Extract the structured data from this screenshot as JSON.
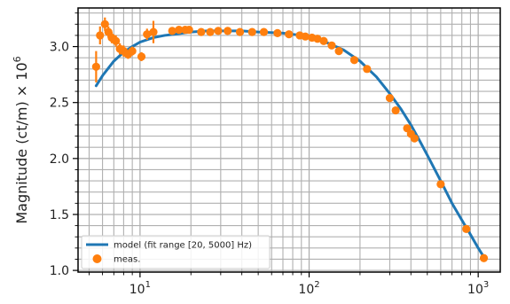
{
  "chart_data": {
    "type": "scatter",
    "x_scale": "log",
    "xlim": [
      4.3,
      1350
    ],
    "ylim": [
      0.985,
      3.345
    ],
    "y_ticks": [
      1.0,
      1.5,
      2.0,
      2.5,
      3.0
    ],
    "y_tick_labels": [
      "1.0",
      "1.5",
      "2.0",
      "2.5",
      "3.0"
    ],
    "x_ticks": [
      10,
      100,
      1000
    ],
    "x_tick_labels": [
      "10",
      "10",
      "10"
    ],
    "x_tick_exponents": [
      "1",
      "2",
      "3"
    ],
    "ylabel": "Magnitude (ct/m) × 10",
    "ylabel_exponent": "6",
    "xlabel": "",
    "grid": true,
    "legend_position": "lower-left",
    "colors": {
      "model": "#1f77b4",
      "meas": "#ff7f0e"
    },
    "series": [
      {
        "name": "model (fit range [20, 5000] Hz)",
        "kind": "line",
        "x": [
          5.5,
          6,
          7,
          8,
          9,
          10,
          12,
          14,
          16,
          20,
          25,
          30,
          40,
          50,
          70,
          90,
          110,
          130,
          160,
          200,
          250,
          300,
          350,
          400,
          450,
          500,
          600,
          700,
          800,
          900,
          1000,
          1100
        ],
        "y": [
          2.65,
          2.74,
          2.87,
          2.95,
          3.0,
          3.04,
          3.08,
          3.1,
          3.11,
          3.13,
          3.14,
          3.14,
          3.14,
          3.13,
          3.12,
          3.1,
          3.07,
          3.03,
          2.97,
          2.87,
          2.73,
          2.58,
          2.44,
          2.3,
          2.16,
          2.03,
          1.8,
          1.6,
          1.45,
          1.32,
          1.2,
          1.1
        ]
      },
      {
        "name": "meas.",
        "kind": "scatter",
        "x": [
          5.5,
          5.8,
          6.2,
          6.5,
          6.8,
          7.2,
          7.6,
          8.0,
          8.5,
          9.0,
          10.2,
          11.0,
          12.0,
          15.5,
          17.0,
          18.5,
          19.5,
          23,
          26,
          29,
          33,
          39,
          46,
          54,
          65,
          76,
          88,
          95,
          104,
          112,
          122,
          136,
          150,
          185,
          220,
          300,
          325,
          380,
          400,
          420,
          600,
          850,
          1080
        ],
        "y": [
          2.82,
          3.1,
          3.2,
          3.13,
          3.08,
          3.05,
          2.98,
          2.96,
          2.93,
          2.96,
          2.91,
          3.11,
          3.13,
          3.14,
          3.15,
          3.15,
          3.15,
          3.13,
          3.13,
          3.14,
          3.14,
          3.13,
          3.13,
          3.13,
          3.12,
          3.11,
          3.1,
          3.09,
          3.08,
          3.07,
          3.05,
          3.01,
          2.96,
          2.88,
          2.8,
          2.54,
          2.43,
          2.27,
          2.22,
          2.18,
          1.77,
          1.37,
          1.11
        ],
        "err": [
          0.14,
          0.08,
          0.06,
          0.05,
          0.05,
          0.05,
          0.05,
          0.05,
          0.04,
          0.04,
          0.04,
          0.05,
          0.1,
          0.03,
          0.02,
          0.02,
          0.02,
          0.01,
          0.01,
          0.01,
          0.01,
          0.01,
          0.01,
          0.01,
          0.01,
          0.01,
          0.01,
          0.01,
          0.01,
          0.01,
          0.01,
          0.01,
          0.01,
          0.01,
          0.01,
          0.01,
          0.01,
          0.01,
          0.01,
          0.01,
          0.01,
          0.01,
          0.01
        ]
      }
    ]
  }
}
